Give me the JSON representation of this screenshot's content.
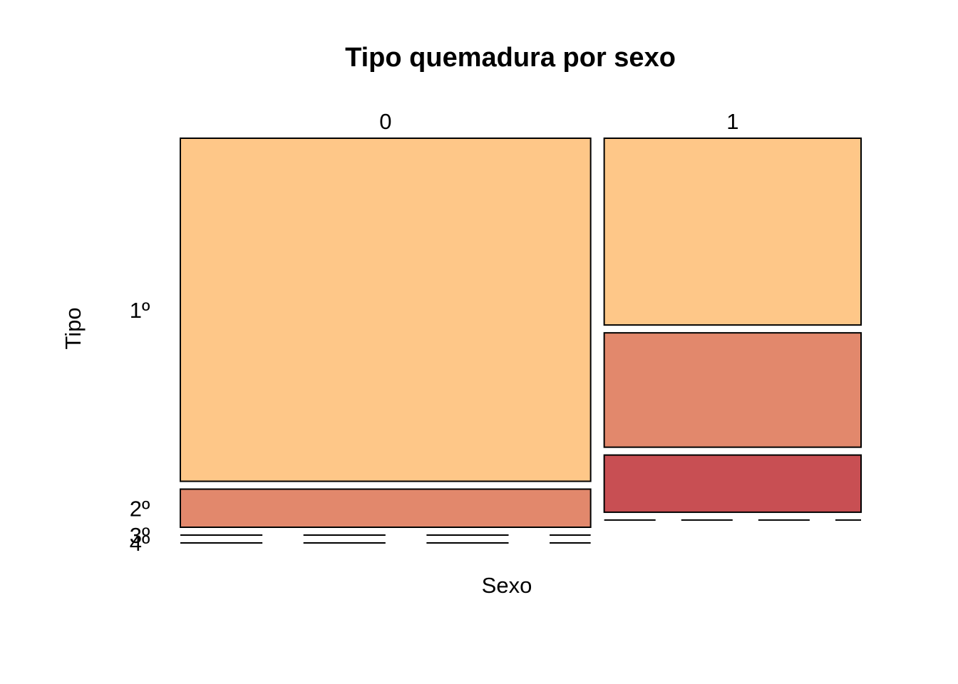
{
  "chart_data": {
    "type": "mosaic",
    "title": "Tipo quemadura por sexo",
    "xlabel": "Sexo",
    "ylabel": "Tipo",
    "x_categories": [
      "0",
      "1"
    ],
    "y_categories": [
      "1º",
      "2º",
      "3º",
      "4º"
    ],
    "column_proportions": [
      0.615,
      0.385
    ],
    "cell_proportions": {
      "0": [
        0.9,
        0.1,
        0.0,
        0.0
      ],
      "1": [
        0.49,
        0.3,
        0.15,
        0.0
      ]
    },
    "colors": [
      "#FEC788",
      "#E2886C",
      "#C84F53",
      "#AB1339"
    ],
    "grid": false,
    "legend": "none"
  }
}
